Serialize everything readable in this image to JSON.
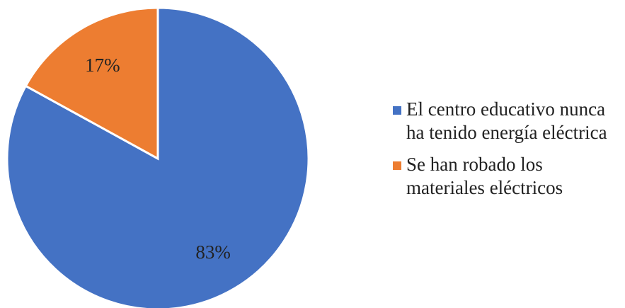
{
  "chart_data": {
    "type": "pie",
    "categories": [
      "El centro educativo nunca ha tenido energía eléctrica",
      "Se han robado los materiales eléctricos"
    ],
    "values": [
      83,
      17
    ],
    "labels": [
      "83%",
      "17%"
    ],
    "colors": [
      "#4472C4",
      "#ED7D31"
    ],
    "legend": "right",
    "title": ""
  }
}
